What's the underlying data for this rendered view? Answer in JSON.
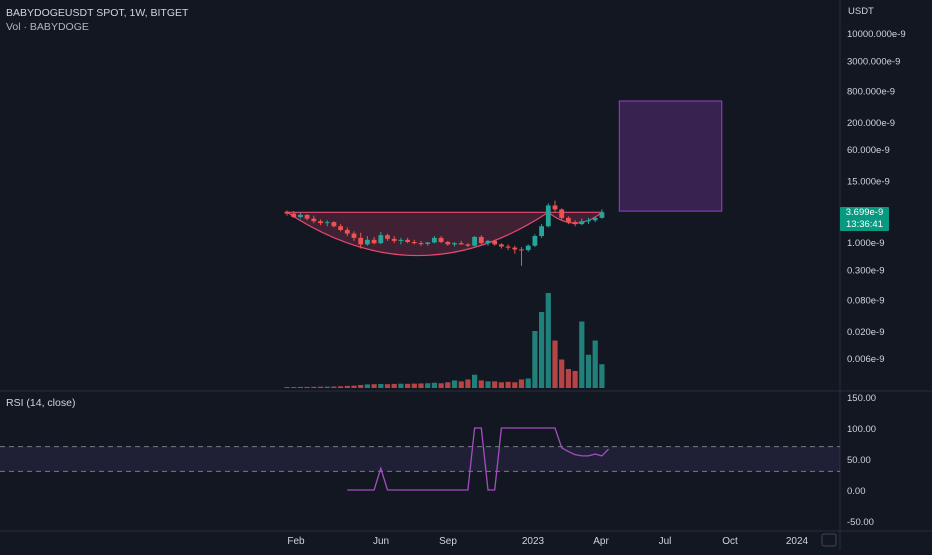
{
  "header": {
    "symbol_line": "BABYDOGEUSDT SPOT, 1W, BITGET",
    "volume_line": "Vol · BABYDOGE"
  },
  "rsi_panel": {
    "label": "RSI (14, close)"
  },
  "price_tag": {
    "price": "3.699e-9",
    "countdown": "13:36:41"
  },
  "colors": {
    "background": "#131722",
    "up": "#26a69a",
    "down": "#ef5350",
    "rsi_line": "#a64dc4",
    "rsi_band": "#7e57c2",
    "cup": "#e54873",
    "target_box": "#9c3fc5"
  },
  "chart_data": [
    {
      "type": "candlestick",
      "title": "BABYDOGEUSDT SPOT, 1W, BITGET",
      "yscale": "log",
      "axis_unit": "USDT",
      "ylim": [
        5e-05,
        80000
      ],
      "y_ticks": [
        "10000.000e-9",
        "3000.000e-9",
        "800.000e-9",
        "200.000e-9",
        "60.000e-9",
        "15.000e-9",
        "1.000e-9",
        "0.300e-9",
        "0.080e-9",
        "0.020e-9",
        "0.006e-9"
      ],
      "x_ticks": [
        "Feb",
        "Jun",
        "Sep",
        "2023",
        "Apr",
        "Jul",
        "Oct",
        "2024"
      ],
      "last_price": "3.699e-9",
      "candles": [
        [
          3.8,
          4.0,
          3.2,
          3.5
        ],
        [
          3.5,
          3.9,
          2.9,
          3.0
        ],
        [
          3.0,
          3.6,
          2.8,
          3.3
        ],
        [
          3.3,
          3.4,
          2.6,
          2.8
        ],
        [
          2.8,
          3.2,
          2.3,
          2.5
        ],
        [
          2.5,
          2.7,
          2.1,
          2.3
        ],
        [
          2.3,
          2.6,
          2.0,
          2.4
        ],
        [
          2.4,
          2.5,
          1.9,
          2.0
        ],
        [
          2.0,
          2.2,
          1.6,
          1.7
        ],
        [
          1.7,
          1.9,
          1.3,
          1.45
        ],
        [
          1.45,
          1.6,
          1.05,
          1.2
        ],
        [
          1.2,
          1.5,
          0.75,
          0.9
        ],
        [
          0.9,
          1.3,
          0.85,
          1.1
        ],
        [
          1.1,
          1.25,
          0.9,
          0.95
        ],
        [
          0.95,
          1.55,
          0.92,
          1.35
        ],
        [
          1.35,
          1.45,
          1.05,
          1.15
        ],
        [
          1.15,
          1.3,
          0.95,
          1.05
        ],
        [
          1.05,
          1.2,
          0.9,
          1.1
        ],
        [
          1.1,
          1.2,
          0.95,
          1.0
        ],
        [
          1.0,
          1.1,
          0.9,
          0.95
        ],
        [
          0.95,
          1.05,
          0.85,
          0.92
        ],
        [
          0.92,
          1.0,
          0.85,
          0.98
        ],
        [
          0.98,
          1.3,
          0.95,
          1.2
        ],
        [
          1.2,
          1.3,
          0.95,
          1.0
        ],
        [
          1.0,
          1.05,
          0.85,
          0.9
        ],
        [
          0.9,
          1.0,
          0.82,
          0.95
        ],
        [
          0.95,
          1.05,
          0.88,
          0.9
        ],
        [
          0.9,
          0.95,
          0.8,
          0.85
        ],
        [
          0.85,
          1.3,
          0.82,
          1.25
        ],
        [
          1.25,
          1.35,
          0.9,
          0.95
        ],
        [
          0.95,
          1.1,
          0.85,
          1.05
        ],
        [
          1.05,
          1.1,
          0.85,
          0.9
        ],
        [
          0.9,
          0.95,
          0.75,
          0.82
        ],
        [
          0.82,
          0.9,
          0.7,
          0.78
        ],
        [
          0.78,
          0.85,
          0.6,
          0.72
        ],
        [
          0.72,
          0.8,
          0.35,
          0.7
        ],
        [
          0.7,
          0.9,
          0.65,
          0.85
        ],
        [
          0.85,
          1.4,
          0.8,
          1.3
        ],
        [
          1.3,
          2.2,
          1.2,
          2.0
        ],
        [
          2.0,
          5.5,
          1.9,
          5.0
        ],
        [
          5.0,
          6.2,
          3.8,
          4.2
        ],
        [
          4.2,
          4.4,
          2.6,
          2.9
        ],
        [
          2.9,
          3.1,
          2.2,
          2.4
        ],
        [
          2.4,
          2.6,
          2.0,
          2.2
        ],
        [
          2.2,
          2.8,
          2.1,
          2.5
        ],
        [
          2.5,
          2.9,
          2.2,
          2.6
        ],
        [
          2.6,
          3.0,
          2.4,
          2.9
        ],
        [
          2.9,
          4.2,
          2.8,
          3.699
        ]
      ],
      "volume": [
        1,
        1,
        1.1,
        1.1,
        1.2,
        1.3,
        1.4,
        1.5,
        1.8,
        2.2,
        2.5,
        3.2,
        3.8,
        4.0,
        4.2,
        4.0,
        4.3,
        4.5,
        4.4,
        4.6,
        4.8,
        5.0,
        5.5,
        5.0,
        6.0,
        8.0,
        7.0,
        9.0,
        14.0,
        8.0,
        7.0,
        7.0,
        6.0,
        6.5,
        6.0,
        9.0,
        10.0,
        60.0,
        80.0,
        100.0,
        50.0,
        30.0,
        20.0,
        18.0,
        70.0,
        35.0,
        50.0,
        25.0
      ],
      "annotations": {
        "cup": {
          "start_index": 0,
          "end_index": 39,
          "rim_price": 3.7,
          "bottom_price": 0.55
        },
        "handle": {
          "start_index": 39,
          "end_index": 47,
          "rim_price": 3.7,
          "bottom_price": 2.3
        },
        "target_box": {
          "price_low": 3.9,
          "price_high": 500,
          "start_index": 49,
          "end_index": 64
        }
      }
    },
    {
      "type": "line",
      "title": "RSI (14, close)",
      "ylim": [
        -60,
        160
      ],
      "y_ticks": [
        "150.00",
        "100.00",
        "50.00",
        "0.00",
        "-50.00"
      ],
      "band": [
        30,
        70
      ],
      "series": [
        {
          "values": [
            0,
            0,
            0,
            0,
            0,
            35,
            0,
            0,
            0,
            0,
            0,
            0,
            0,
            0,
            0,
            0,
            0,
            0,
            0,
            100,
            100,
            0,
            0,
            100,
            100,
            100,
            100,
            100,
            100,
            100,
            100,
            100,
            68,
            62,
            57,
            55,
            55,
            58,
            55,
            66
          ]
        }
      ],
      "x_index_start": 9
    }
  ]
}
